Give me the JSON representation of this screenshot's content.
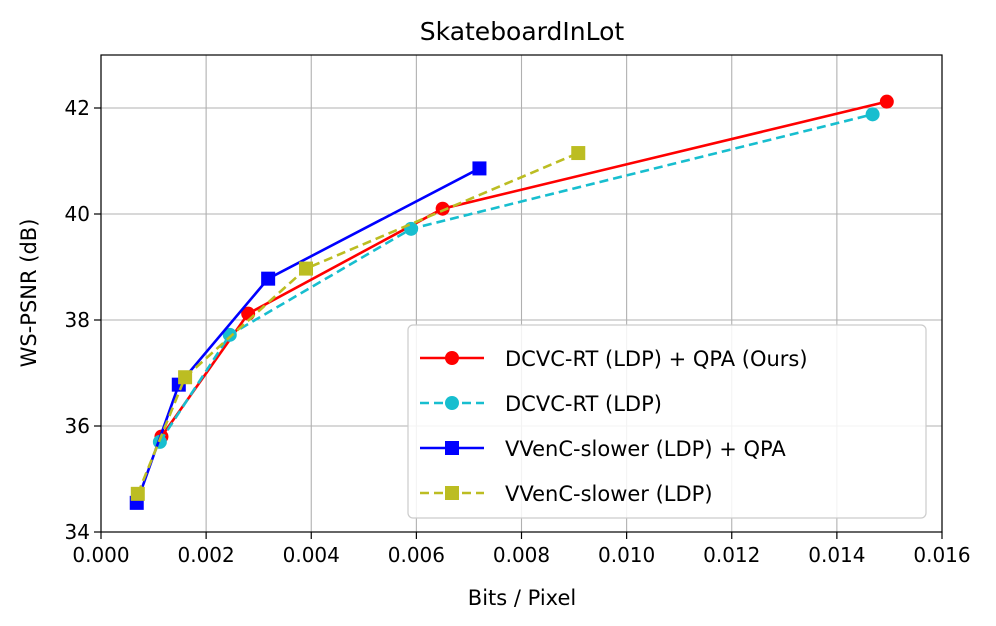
{
  "chart_data": {
    "type": "line",
    "title": "SkateboardInLot",
    "xlabel": "Bits / Pixel",
    "ylabel": "WS-PSNR (dB)",
    "xlim": [
      0.0,
      0.016
    ],
    "ylim": [
      34,
      43
    ],
    "x_ticks": [
      0.0,
      0.002,
      0.004,
      0.006,
      0.008,
      0.01,
      0.012,
      0.014,
      0.016
    ],
    "x_tick_labels": [
      "0.000",
      "0.002",
      "0.004",
      "0.006",
      "0.008",
      "0.010",
      "0.012",
      "0.014",
      "0.016"
    ],
    "y_ticks": [
      34,
      36,
      38,
      40,
      42
    ],
    "y_tick_labels": [
      "34",
      "36",
      "38",
      "40",
      "42"
    ],
    "grid": true,
    "legend_position": "lower-right",
    "series": [
      {
        "name": "DCVC-RT (LDP) + QPA (Ours)",
        "color": "#ff0000",
        "line_style": "solid",
        "marker": "circle",
        "x": [
          0.00115,
          0.0028,
          0.0065,
          0.01495
        ],
        "y": [
          35.8,
          38.12,
          40.1,
          42.12
        ]
      },
      {
        "name": "DCVC-RT (LDP)",
        "color": "#17becf",
        "line_style": "dashed",
        "marker": "circle",
        "x": [
          0.00112,
          0.00245,
          0.0059,
          0.01468
        ],
        "y": [
          35.7,
          37.72,
          39.72,
          41.88
        ]
      },
      {
        "name": "VVenC-slower (LDP) + QPA",
        "color": "#0000ff",
        "line_style": "solid",
        "marker": "square",
        "x": [
          0.00068,
          0.00148,
          0.00318,
          0.0072
        ],
        "y": [
          34.55,
          36.78,
          38.78,
          40.86
        ]
      },
      {
        "name": "VVenC-slower (LDP)",
        "color": "#bcbd22",
        "line_style": "dashed",
        "marker": "square",
        "x": [
          0.0007,
          0.0016,
          0.0039,
          0.00908
        ],
        "y": [
          34.72,
          36.92,
          38.97,
          41.15
        ]
      }
    ]
  }
}
